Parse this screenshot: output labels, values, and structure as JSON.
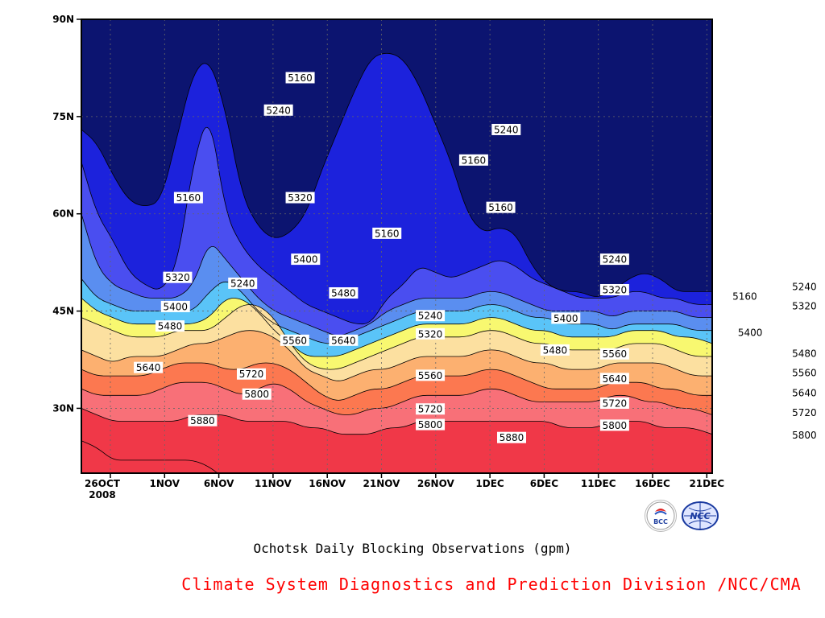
{
  "chart_data": {
    "type": "contour",
    "title": "Ochotsk Daily Blocking Observations (gpm)",
    "credit": "Climate System Diagnostics and Prediction Division /NCC/CMA",
    "x_ticks": [
      "26OCT",
      "1NOV",
      "6NOV",
      "11NOV",
      "16NOV",
      "21NOV",
      "26NOV",
      "1DEC",
      "6DEC",
      "11DEC",
      "16DEC",
      "21DEC"
    ],
    "x_year_label": "2008",
    "y_ticks": [
      "90N",
      "75N",
      "60N",
      "45N",
      "30N"
    ],
    "y_values": [
      90,
      75,
      60,
      45,
      30
    ],
    "ylim": [
      20,
      90
    ],
    "xlim_days": [
      0,
      58
    ],
    "grid": true,
    "contour_levels": [
      5160,
      5240,
      5320,
      5400,
      5480,
      5560,
      5640,
      5720,
      5800,
      5880
    ],
    "fill_colors": [
      "#0c1470",
      "#1c22dc",
      "#4a4ef0",
      "#5a8ef0",
      "#5ac4f8",
      "#f8f870",
      "#fce0a0",
      "#fcb070",
      "#fc7850",
      "#f87078",
      "#f03848"
    ],
    "contour_labels": [
      {
        "value": "5160",
        "day": 17.5,
        "lat": 81
      },
      {
        "value": "5240",
        "day": 15.5,
        "lat": 76
      },
      {
        "value": "5160",
        "day": 7.2,
        "lat": 62.5
      },
      {
        "value": "5320",
        "day": 17.5,
        "lat": 62.5
      },
      {
        "value": "5160",
        "day": 25.5,
        "lat": 57
      },
      {
        "value": "5400",
        "day": 18,
        "lat": 53
      },
      {
        "value": "5320",
        "day": 6.2,
        "lat": 50.2
      },
      {
        "value": "5240",
        "day": 12.2,
        "lat": 49.3
      },
      {
        "value": "5480",
        "day": 21.5,
        "lat": 47.8
      },
      {
        "value": "5400",
        "day": 6,
        "lat": 45.7
      },
      {
        "value": "5480",
        "day": 5.5,
        "lat": 42.7
      },
      {
        "value": "5560",
        "day": 17,
        "lat": 40.5
      },
      {
        "value": "5640",
        "day": 21.5,
        "lat": 40.5
      },
      {
        "value": "5640",
        "day": 3.5,
        "lat": 36.3
      },
      {
        "value": "5720",
        "day": 13,
        "lat": 35.3
      },
      {
        "value": "5800",
        "day": 13.5,
        "lat": 32.2
      },
      {
        "value": "5880",
        "day": 8.5,
        "lat": 28.1
      },
      {
        "value": "5240",
        "day": 29.5,
        "lat": 44.3
      },
      {
        "value": "5320",
        "day": 29.5,
        "lat": 41.5
      },
      {
        "value": "5560",
        "day": 29.5,
        "lat": 35.1
      },
      {
        "value": "5720",
        "day": 29.5,
        "lat": 29.9
      },
      {
        "value": "5800",
        "day": 29.5,
        "lat": 27.5
      },
      {
        "value": "5240",
        "day": 36.5,
        "lat": 73
      },
      {
        "value": "5160",
        "day": 33.5,
        "lat": 68.3
      },
      {
        "value": "5160",
        "day": 36,
        "lat": 61
      },
      {
        "value": "5880",
        "day": 37,
        "lat": 25.5
      },
      {
        "value": "5400",
        "day": 42,
        "lat": 43.9
      },
      {
        "value": "5480",
        "day": 41,
        "lat": 39
      },
      {
        "value": "5240",
        "day": 46.5,
        "lat": 53
      },
      {
        "value": "5320",
        "day": 46.5,
        "lat": 48.3
      },
      {
        "value": "5560",
        "day": 46.5,
        "lat": 38.4
      },
      {
        "value": "5640",
        "day": 46.5,
        "lat": 34.6
      },
      {
        "value": "5720",
        "day": 46.5,
        "lat": 30.8
      },
      {
        "value": "5800",
        "day": 46.5,
        "lat": 27.4
      },
      {
        "value": "5160",
        "day": 58.5,
        "lat": 47.3
      },
      {
        "value": "5400",
        "day": 59,
        "lat": 41.7
      },
      {
        "value": "5240",
        "day": 64,
        "lat": 48.8
      },
      {
        "value": "5320",
        "day": 64,
        "lat": 45.8
      },
      {
        "value": "5480",
        "day": 64,
        "lat": 38.5
      },
      {
        "value": "5560",
        "day": 64,
        "lat": 35.5
      },
      {
        "value": "5640",
        "day": 64,
        "lat": 32.4
      },
      {
        "value": "5720",
        "day": 64,
        "lat": 29.4
      },
      {
        "value": "5800",
        "day": 64,
        "lat": 25.9
      }
    ]
  },
  "logos": {
    "bcc_text": "BCC",
    "ncc_text": "NCC"
  },
  "colors": {
    "credit": "#ff0000"
  }
}
